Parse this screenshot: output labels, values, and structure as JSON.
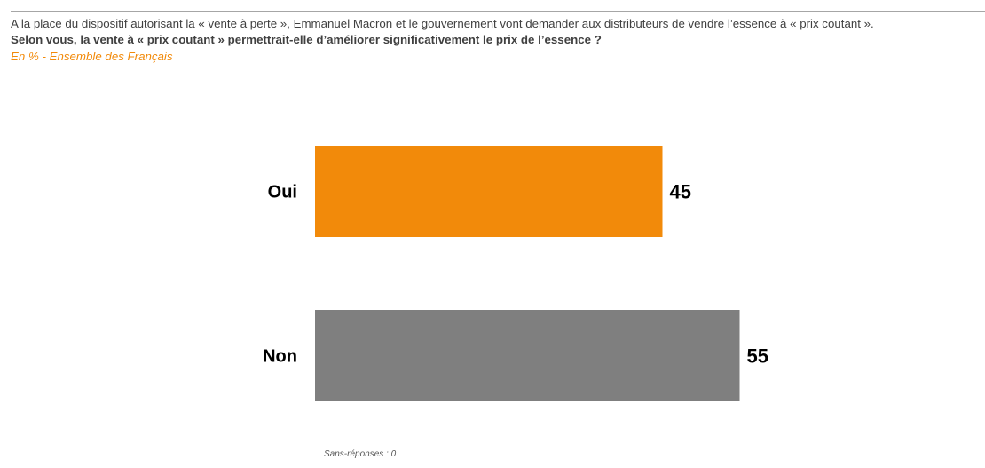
{
  "header": {
    "intro": "A la place du dispositif autorisant la « vente à perte », Emmanuel Macron et le gouvernement vont demander aux distributeurs de vendre l’essence à « prix coutant ».",
    "question": "Selon vous, la vente à « prix coutant » permettrait-elle d’améliorer significativement le prix de l’essence ?",
    "subtitle": "En % - Ensemble des Français"
  },
  "footer": {
    "note": "Sans-réponses : 0"
  },
  "colors": {
    "oui": "#f28a0a",
    "non": "#7f7f7f",
    "subtitle": "#f28a0a"
  },
  "chart_data": {
    "type": "bar",
    "orientation": "horizontal",
    "categories": [
      "Oui",
      "Non"
    ],
    "values": [
      45,
      55
    ],
    "unit": "%",
    "xlim": [
      0,
      100
    ],
    "grid": false,
    "legend": "none"
  }
}
